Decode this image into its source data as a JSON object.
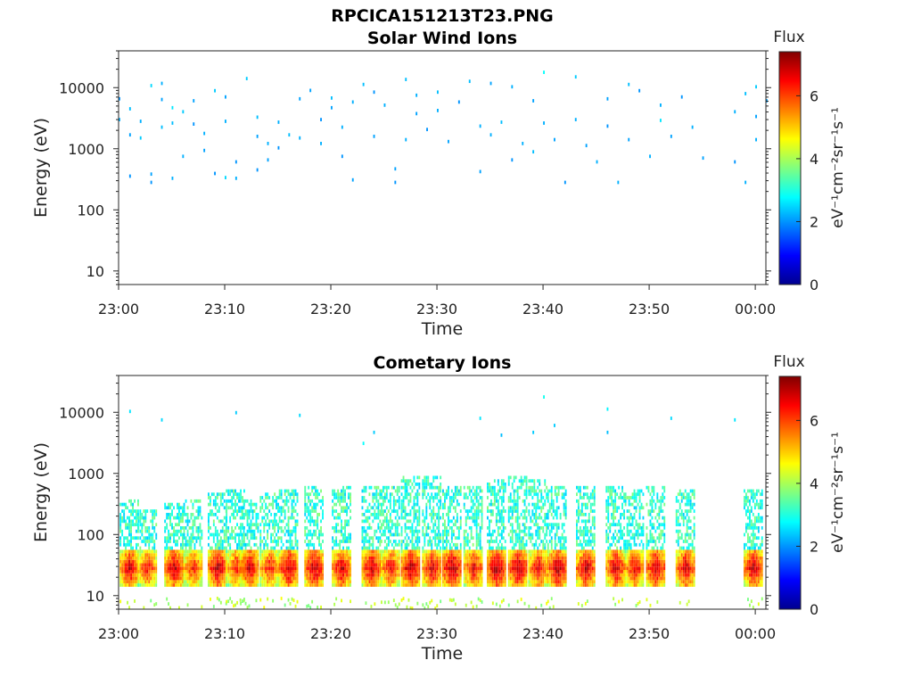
{
  "figure_title": "RPCICA151213T23.PNG",
  "colors": {
    "colormap": "jet",
    "axis": "#262626",
    "text": "#222222",
    "background": "#ffffff"
  },
  "chart_data": [
    {
      "type": "heatmap",
      "title": "Solar Wind Ions",
      "xlabel": "Time",
      "ylabel": "Energy (eV)",
      "yscale": "log",
      "ylim": [
        6,
        40000
      ],
      "xlim": [
        "23:00",
        "00:01"
      ],
      "xticks": [
        "23:00",
        "23:10",
        "23:20",
        "23:30",
        "23:40",
        "23:50",
        "00:00"
      ],
      "yticks": [
        {
          "value": 10,
          "label": "10"
        },
        {
          "value": 100,
          "label": "100"
        },
        {
          "value": 1000,
          "label": "1000"
        },
        {
          "value": 10000,
          "label": "10000"
        }
      ],
      "colorbar": {
        "title": "Flux",
        "label": "eV⁻¹cm⁻²sr⁻¹s⁻¹",
        "range": [
          0,
          7.4
        ],
        "ticks": [
          "0",
          "2",
          "4",
          "6"
        ]
      },
      "cells": [
        {
          "t": "23:00",
          "e": 7000,
          "v": 2.0
        },
        {
          "t": "23:00",
          "e": 3200,
          "v": 2.2
        },
        {
          "t": "23:01",
          "e": 380,
          "v": 2.0
        },
        {
          "t": "23:01",
          "e": 4800,
          "v": 2.3
        },
        {
          "t": "23:01",
          "e": 1800,
          "v": 2.1
        },
        {
          "t": "23:02",
          "e": 1600,
          "v": 2.4
        },
        {
          "t": "23:02",
          "e": 3000,
          "v": 2.2
        },
        {
          "t": "23:03",
          "e": 11500,
          "v": 2.5
        },
        {
          "t": "23:03",
          "e": 410,
          "v": 2.1
        },
        {
          "t": "23:03",
          "e": 300,
          "v": 2.0
        },
        {
          "t": "23:04",
          "e": 2400,
          "v": 2.3
        },
        {
          "t": "23:04",
          "e": 12500,
          "v": 2.2
        },
        {
          "t": "23:04",
          "e": 6800,
          "v": 2.1
        },
        {
          "t": "23:05",
          "e": 5000,
          "v": 2.6
        },
        {
          "t": "23:05",
          "e": 350,
          "v": 2.2
        },
        {
          "t": "23:05",
          "e": 2800,
          "v": 2.3
        },
        {
          "t": "23:06",
          "e": 4300,
          "v": 2.4
        },
        {
          "t": "23:06",
          "e": 800,
          "v": 2.2
        },
        {
          "t": "23:07",
          "e": 2700,
          "v": 2.0
        },
        {
          "t": "23:07",
          "e": 6500,
          "v": 2.1
        },
        {
          "t": "23:08",
          "e": 1900,
          "v": 2.2
        },
        {
          "t": "23:08",
          "e": 1000,
          "v": 2.1
        },
        {
          "t": "23:09",
          "e": 9500,
          "v": 2.4
        },
        {
          "t": "23:09",
          "e": 420,
          "v": 2.0
        },
        {
          "t": "23:10",
          "e": 3000,
          "v": 2.2
        },
        {
          "t": "23:10",
          "e": 7500,
          "v": 2.1
        },
        {
          "t": "23:10",
          "e": 360,
          "v": 2.5
        },
        {
          "t": "23:11",
          "e": 650,
          "v": 2.0
        },
        {
          "t": "23:11",
          "e": 350,
          "v": 2.2
        },
        {
          "t": "23:12",
          "e": 15000,
          "v": 2.4
        },
        {
          "t": "23:13",
          "e": 3500,
          "v": 2.3
        },
        {
          "t": "23:13",
          "e": 1700,
          "v": 2.1
        },
        {
          "t": "23:13",
          "e": 480,
          "v": 2.0
        },
        {
          "t": "23:14",
          "e": 1300,
          "v": 2.2
        },
        {
          "t": "23:14",
          "e": 700,
          "v": 2.1
        },
        {
          "t": "23:15",
          "e": 2900,
          "v": 2.2
        },
        {
          "t": "23:15",
          "e": 1100,
          "v": 2.0
        },
        {
          "t": "23:16",
          "e": 1800,
          "v": 2.3
        },
        {
          "t": "23:17",
          "e": 7000,
          "v": 2.1
        },
        {
          "t": "23:17",
          "e": 1600,
          "v": 2.2
        },
        {
          "t": "23:18",
          "e": 9600,
          "v": 2.1
        },
        {
          "t": "23:19",
          "e": 3200,
          "v": 2.0
        },
        {
          "t": "23:19",
          "e": 1300,
          "v": 2.2
        },
        {
          "t": "23:20",
          "e": 7200,
          "v": 2.3
        },
        {
          "t": "23:20",
          "e": 5000,
          "v": 2.1
        },
        {
          "t": "23:21",
          "e": 2400,
          "v": 2.2
        },
        {
          "t": "23:21",
          "e": 800,
          "v": 2.0
        },
        {
          "t": "23:22",
          "e": 330,
          "v": 2.1
        },
        {
          "t": "23:22",
          "e": 6200,
          "v": 2.2
        },
        {
          "t": "23:23",
          "e": 12000,
          "v": 2.3
        },
        {
          "t": "23:24",
          "e": 1700,
          "v": 2.1
        },
        {
          "t": "23:24",
          "e": 9000,
          "v": 2.0
        },
        {
          "t": "23:25",
          "e": 5500,
          "v": 2.2
        },
        {
          "t": "23:26",
          "e": 500,
          "v": 2.1
        },
        {
          "t": "23:26",
          "e": 300,
          "v": 2.0
        },
        {
          "t": "23:27",
          "e": 14500,
          "v": 2.3
        },
        {
          "t": "23:27",
          "e": 1500,
          "v": 2.2
        },
        {
          "t": "23:28",
          "e": 4000,
          "v": 2.1
        },
        {
          "t": "23:28",
          "e": 8000,
          "v": 2.2
        },
        {
          "t": "23:29",
          "e": 2200,
          "v": 2.0
        },
        {
          "t": "23:30",
          "e": 9000,
          "v": 2.3
        },
        {
          "t": "23:30",
          "e": 4500,
          "v": 2.2
        },
        {
          "t": "23:31",
          "e": 1400,
          "v": 2.1
        },
        {
          "t": "23:32",
          "e": 6200,
          "v": 2.0
        },
        {
          "t": "23:33",
          "e": 13500,
          "v": 2.3
        },
        {
          "t": "23:34",
          "e": 2500,
          "v": 2.2
        },
        {
          "t": "23:34",
          "e": 450,
          "v": 2.1
        },
        {
          "t": "23:35",
          "e": 1800,
          "v": 2.2
        },
        {
          "t": "23:35",
          "e": 12500,
          "v": 2.1
        },
        {
          "t": "23:36",
          "e": 2900,
          "v": 2.3
        },
        {
          "t": "23:37",
          "e": 11000,
          "v": 2.2
        },
        {
          "t": "23:37",
          "e": 700,
          "v": 2.0
        },
        {
          "t": "23:38",
          "e": 1300,
          "v": 2.2
        },
        {
          "t": "23:39",
          "e": 6500,
          "v": 2.1
        },
        {
          "t": "23:39",
          "e": 950,
          "v": 2.3
        },
        {
          "t": "23:40",
          "e": 19000,
          "v": 2.8
        },
        {
          "t": "23:40",
          "e": 2800,
          "v": 2.2
        },
        {
          "t": "23:41",
          "e": 1500,
          "v": 2.1
        },
        {
          "t": "23:42",
          "e": 300,
          "v": 2.0
        },
        {
          "t": "23:43",
          "e": 16000,
          "v": 2.4
        },
        {
          "t": "23:43",
          "e": 3200,
          "v": 2.2
        },
        {
          "t": "23:44",
          "e": 1200,
          "v": 2.1
        },
        {
          "t": "23:45",
          "e": 650,
          "v": 2.2
        },
        {
          "t": "23:46",
          "e": 2500,
          "v": 2.0
        },
        {
          "t": "23:46",
          "e": 7000,
          "v": 2.1
        },
        {
          "t": "23:47",
          "e": 300,
          "v": 2.2
        },
        {
          "t": "23:48",
          "e": 12000,
          "v": 2.3
        },
        {
          "t": "23:48",
          "e": 1500,
          "v": 2.1
        },
        {
          "t": "23:49",
          "e": 9500,
          "v": 2.0
        },
        {
          "t": "23:50",
          "e": 800,
          "v": 2.2
        },
        {
          "t": "23:51",
          "e": 3100,
          "v": 2.6
        },
        {
          "t": "23:51",
          "e": 5500,
          "v": 2.2
        },
        {
          "t": "23:52",
          "e": 1700,
          "v": 2.1
        },
        {
          "t": "23:53",
          "e": 7500,
          "v": 2.0
        },
        {
          "t": "23:54",
          "e": 2400,
          "v": 2.2
        },
        {
          "t": "23:55",
          "e": 750,
          "v": 2.1
        },
        {
          "t": "23:58",
          "e": 4300,
          "v": 2.2
        },
        {
          "t": "23:58",
          "e": 650,
          "v": 2.0
        },
        {
          "t": "23:59",
          "e": 8500,
          "v": 2.3
        },
        {
          "t": "23:59",
          "e": 300,
          "v": 2.2
        },
        {
          "t": "00:00",
          "e": 11000,
          "v": 2.4
        },
        {
          "t": "00:00",
          "e": 3600,
          "v": 2.1
        },
        {
          "t": "00:00",
          "e": 1500,
          "v": 2.2
        },
        {
          "t": "00:01",
          "e": 6500,
          "v": 2.1
        }
      ]
    },
    {
      "type": "heatmap",
      "title": "Cometary Ions",
      "xlabel": "Time",
      "ylabel": "Energy (eV)",
      "yscale": "log",
      "ylim": [
        6,
        40000
      ],
      "xlim": [
        "23:00",
        "00:01"
      ],
      "xticks": [
        "23:00",
        "23:10",
        "23:20",
        "23:30",
        "23:40",
        "23:50",
        "00:00"
      ],
      "yticks": [
        {
          "value": 10,
          "label": "10"
        },
        {
          "value": 100,
          "label": "100"
        },
        {
          "value": 1000,
          "label": "1000"
        },
        {
          "value": 10000,
          "label": "10000"
        }
      ],
      "colorbar": {
        "title": "Flux",
        "label": "eV⁻¹cm⁻²sr⁻¹s⁻¹",
        "range": [
          0,
          7.4
        ],
        "ticks": [
          "0",
          "2",
          "4",
          "6"
        ]
      },
      "bursts": [
        {
          "t": "23:01.0",
          "peak": 7.0,
          "spread": 300
        },
        {
          "t": "23:02.7",
          "peak": 6.6,
          "spread": 200
        },
        {
          "t": "23:05.2",
          "peak": 7.1,
          "spread": 250
        },
        {
          "t": "23:07.0",
          "peak": 6.5,
          "spread": 300
        },
        {
          "t": "23:09.3",
          "peak": 7.2,
          "spread": 350
        },
        {
          "t": "23:11.0",
          "peak": 6.5,
          "spread": 400
        },
        {
          "t": "23:12.3",
          "peak": 7.0,
          "spread": 300
        },
        {
          "t": "23:14.2",
          "peak": 6.6,
          "spread": 350
        },
        {
          "t": "23:16.0",
          "peak": 7.1,
          "spread": 400
        },
        {
          "t": "23:18.4",
          "peak": 7.2,
          "spread": 450
        },
        {
          "t": "23:21.0",
          "peak": 7.0,
          "spread": 500
        },
        {
          "t": "23:23.8",
          "peak": 7.1,
          "spread": 500
        },
        {
          "t": "23:25.6",
          "peak": 6.7,
          "spread": 450
        },
        {
          "t": "23:27.5",
          "peak": 7.2,
          "spread": 900
        },
        {
          "t": "23:29.5",
          "peak": 7.0,
          "spread": 700
        },
        {
          "t": "23:31.4",
          "peak": 7.3,
          "spread": 500
        },
        {
          "t": "23:33.4",
          "peak": 6.8,
          "spread": 500
        },
        {
          "t": "23:35.6",
          "peak": 7.3,
          "spread": 600
        },
        {
          "t": "23:37.6",
          "peak": 7.2,
          "spread": 700
        },
        {
          "t": "23:39.5",
          "peak": 6.8,
          "spread": 600
        },
        {
          "t": "23:41.3",
          "peak": 7.2,
          "spread": 500
        },
        {
          "t": "23:44.0",
          "peak": 7.1,
          "spread": 450
        },
        {
          "t": "23:46.8",
          "peak": 7.0,
          "spread": 500
        },
        {
          "t": "23:48.6",
          "peak": 6.8,
          "spread": 400
        },
        {
          "t": "23:50.6",
          "peak": 7.1,
          "spread": 500
        },
        {
          "t": "23:53.4",
          "peak": 7.0,
          "spread": 400
        },
        {
          "t": "23:59.8",
          "peak": 7.1,
          "spread": 400
        }
      ],
      "sparse_cells": [
        {
          "t": "23:01",
          "e": 11000,
          "v": 2.6
        },
        {
          "t": "23:04",
          "e": 8000,
          "v": 2.5
        },
        {
          "t": "23:11",
          "e": 10500,
          "v": 2.4
        },
        {
          "t": "23:17",
          "e": 9500,
          "v": 2.5
        },
        {
          "t": "23:23",
          "e": 3300,
          "v": 2.8
        },
        {
          "t": "23:24",
          "e": 5000,
          "v": 2.4
        },
        {
          "t": "23:34",
          "e": 8500,
          "v": 2.6
        },
        {
          "t": "23:36",
          "e": 4500,
          "v": 2.3
        },
        {
          "t": "23:39",
          "e": 5000,
          "v": 2.4
        },
        {
          "t": "23:40",
          "e": 19000,
          "v": 2.9
        },
        {
          "t": "23:41",
          "e": 6500,
          "v": 2.4
        },
        {
          "t": "23:46",
          "e": 12000,
          "v": 2.7
        },
        {
          "t": "23:46",
          "e": 5000,
          "v": 2.3
        },
        {
          "t": "23:52",
          "e": 8500,
          "v": 2.5
        },
        {
          "t": "23:58",
          "e": 8000,
          "v": 2.6
        }
      ]
    }
  ]
}
